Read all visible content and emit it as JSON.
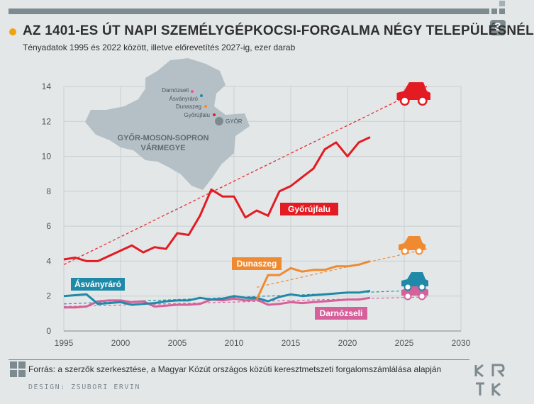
{
  "header": {
    "title": "AZ 1401-ES ÚT NAPI SZEMÉLYGÉPKOCSI-FORGALMA NÉGY TELEPÜLÉSNÉL",
    "subtitle": "Tényadatok 1995 és 2022 között, illetve előrevetítés 2027-ig, ezer darab",
    "page_number": "3"
  },
  "map": {
    "region_label_1": "GYŐR-MOSON-SOPRON",
    "region_label_2": "VÁRMEGYE",
    "city_label": "GYŐR",
    "places": [
      {
        "name": "Darnózseli",
        "color": "#d6609a"
      },
      {
        "name": "Ásványráró",
        "color": "#1f8aa8"
      },
      {
        "name": "Dunaszeg",
        "color": "#f08a30"
      },
      {
        "name": "Győrújfalu",
        "color": "#e31b23"
      }
    ]
  },
  "footer": {
    "source": "Forrás: a szerzők szerkesztése, a Magyar Közút országos közúti keresztmetszeti forgalomszámlálása alapján",
    "design": "DESIGN: ZSUBORI ERVIN"
  },
  "chart_data": {
    "type": "line",
    "xlim": [
      1995,
      2030
    ],
    "ylim": [
      0,
      14
    ],
    "x_ticks": [
      1995,
      2000,
      2005,
      2010,
      2015,
      2020,
      2025,
      2030
    ],
    "y_ticks": [
      0,
      2,
      4,
      6,
      8,
      10,
      12,
      14
    ],
    "grid": true,
    "series": [
      {
        "name": "Győrújfalu",
        "color": "#e31b23",
        "x": [
          1995,
          1996,
          1997,
          1998,
          1999,
          2000,
          2001,
          2002,
          2003,
          2004,
          2005,
          2006,
          2007,
          2008,
          2009,
          2010,
          2011,
          2012,
          2013,
          2014,
          2015,
          2016,
          2017,
          2018,
          2019,
          2020,
          2021,
          2022
        ],
        "values": [
          4.1,
          4.2,
          4.0,
          4.0,
          4.3,
          4.6,
          4.9,
          4.5,
          4.8,
          4.7,
          5.6,
          5.5,
          6.6,
          8.1,
          7.7,
          7.7,
          6.5,
          6.9,
          6.6,
          8.0,
          8.3,
          8.8,
          9.3,
          10.4,
          10.8,
          10.0,
          10.8,
          11.1
        ],
        "trend": {
          "x": [
            1995,
            2027
          ],
          "values": [
            3.8,
            14.0
          ]
        }
      },
      {
        "name": "Dunaszeg",
        "color": "#f08a30",
        "x": [
          2012,
          2013,
          2014,
          2015,
          2016,
          2017,
          2018,
          2019,
          2020,
          2021,
          2022
        ],
        "values": [
          1.8,
          3.2,
          3.2,
          3.6,
          3.4,
          3.5,
          3.5,
          3.7,
          3.7,
          3.8,
          4.0
        ],
        "trend": {
          "x": [
            2012,
            2027
          ],
          "values": [
            2.5,
            4.7
          ]
        }
      },
      {
        "name": "Ásványráró",
        "color": "#1f8aa8",
        "x": [
          1995,
          1996,
          1997,
          1998,
          1999,
          2000,
          2001,
          2002,
          2003,
          2004,
          2005,
          2006,
          2007,
          2008,
          2009,
          2010,
          2011,
          2012,
          2013,
          2014,
          2015,
          2016,
          2017,
          2018,
          2019,
          2020,
          2021,
          2022
        ],
        "values": [
          2.0,
          2.05,
          2.1,
          1.55,
          1.6,
          1.65,
          1.5,
          1.55,
          1.6,
          1.7,
          1.75,
          1.75,
          1.9,
          1.8,
          1.85,
          2.0,
          1.9,
          1.9,
          1.7,
          1.95,
          2.1,
          2.0,
          2.05,
          2.1,
          2.15,
          2.2,
          2.2,
          2.3
        ],
        "trend": {
          "x": [
            1995,
            2027
          ],
          "values": [
            1.55,
            2.35
          ]
        }
      },
      {
        "name": "Darnózseli",
        "color": "#d6609a",
        "x": [
          1995,
          1996,
          1997,
          1998,
          1999,
          2000,
          2001,
          2002,
          2003,
          2004,
          2005,
          2006,
          2007,
          2008,
          2009,
          2010,
          2011,
          2012,
          2013,
          2014,
          2015,
          2016,
          2017,
          2018,
          2019,
          2020,
          2021,
          2022
        ],
        "values": [
          1.35,
          1.35,
          1.4,
          1.7,
          1.75,
          1.75,
          1.65,
          1.7,
          1.4,
          1.45,
          1.5,
          1.5,
          1.55,
          1.8,
          1.75,
          1.85,
          1.75,
          1.8,
          1.5,
          1.55,
          1.65,
          1.6,
          1.65,
          1.7,
          1.75,
          1.8,
          1.8,
          1.9
        ],
        "trend": {
          "x": [
            1995,
            2027
          ],
          "values": [
            1.4,
            1.95
          ]
        }
      }
    ]
  }
}
